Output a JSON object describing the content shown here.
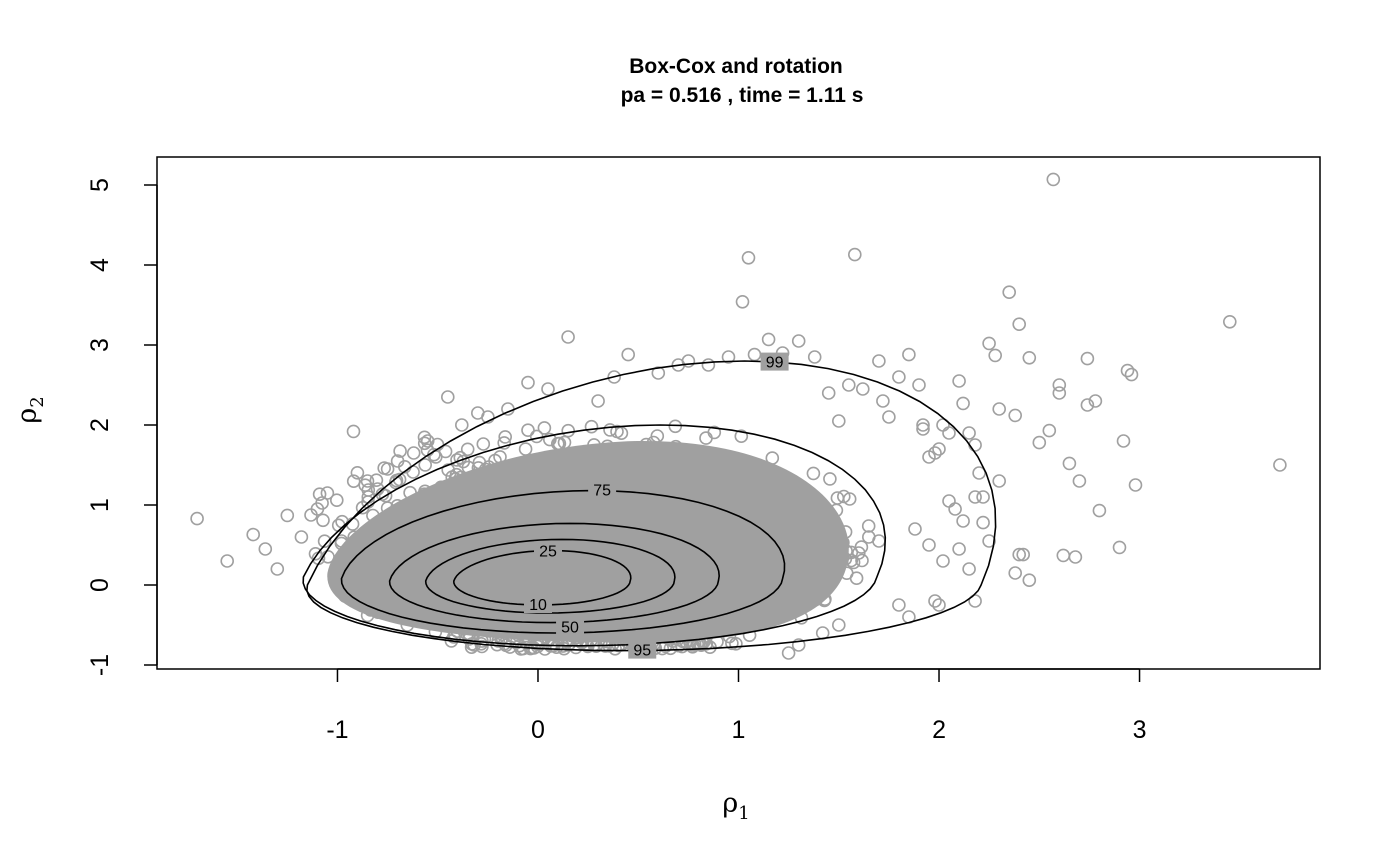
{
  "chart_data": {
    "type": "scatter",
    "title": "Box-Cox and rotation",
    "subtitle": "pa =  0.516 , time =  1.11 s",
    "xlabel": "ρ1",
    "ylabel": "ρ2",
    "xlim": [
      -1.9,
      3.9
    ],
    "ylim": [
      -1.05,
      5.35
    ],
    "x_ticks": [
      -1,
      0,
      1,
      2,
      3
    ],
    "y_ticks": [
      -1,
      0,
      1,
      2,
      3,
      4,
      5
    ],
    "x_tick_labels": [
      "-1",
      "0",
      "1",
      "2",
      "3"
    ],
    "y_tick_labels": [
      "-1",
      "0",
      "1",
      "2",
      "3",
      "4",
      "5"
    ],
    "grid": false,
    "point_color": "#a0a0a0",
    "contour_color": "#000000",
    "dense_region_color": "#a0a0a0",
    "points": {
      "x": [
        -1.7,
        -1.55,
        -1.42,
        -1.36,
        -1.3,
        -1.25,
        -1.18,
        -1.1,
        -1.05,
        -0.98,
        -0.92,
        -0.85,
        -0.8,
        -0.75,
        -0.7,
        -0.62,
        -0.55,
        -0.45,
        -0.38,
        -0.3,
        -0.25,
        -0.15,
        -0.05,
        0.05,
        0.15,
        0.3,
        0.38,
        0.45,
        0.6,
        0.7,
        0.75,
        0.85,
        0.95,
        1.02,
        1.05,
        1.08,
        1.15,
        1.22,
        1.3,
        1.38,
        1.45,
        1.5,
        1.55,
        1.58,
        1.62,
        1.7,
        1.72,
        1.75,
        1.8,
        1.85,
        1.9,
        1.92,
        1.95,
        2.0,
        2.02,
        2.05,
        2.1,
        2.12,
        2.15,
        2.18,
        2.2,
        2.22,
        2.25,
        2.28,
        2.3,
        2.3,
        2.35,
        2.38,
        2.4,
        2.42,
        2.45,
        2.5,
        2.55,
        2.57,
        2.6,
        2.6,
        2.62,
        2.65,
        2.68,
        2.7,
        2.74,
        2.74,
        2.78,
        2.8,
        2.9,
        2.92,
        2.94,
        2.96,
        2.98,
        3.45,
        3.7,
        1.92,
        1.98,
        2.05,
        2.08,
        2.12,
        1.88,
        1.95,
        2.02,
        2.15,
        2.18,
        1.8,
        1.85,
        1.65,
        1.7,
        1.6,
        1.5,
        1.42,
        1.3,
        1.25
      ],
      "y": [
        0.83,
        0.3,
        0.63,
        0.45,
        0.2,
        0.87,
        0.6,
        0.95,
        1.15,
        0.55,
        1.92,
        1.3,
        1.2,
        1.45,
        1.55,
        1.65,
        1.8,
        2.35,
        2.0,
        2.15,
        2.1,
        2.2,
        2.53,
        2.45,
        3.1,
        2.3,
        2.6,
        2.88,
        2.65,
        2.75,
        2.8,
        2.75,
        2.85,
        3.54,
        4.09,
        2.88,
        3.07,
        2.9,
        3.05,
        2.85,
        2.4,
        2.05,
        2.5,
        4.13,
        2.45,
        2.8,
        2.3,
        2.1,
        2.6,
        2.88,
        2.5,
        2.0,
        1.6,
        1.7,
        2.0,
        1.9,
        2.55,
        2.27,
        1.9,
        1.75,
        1.4,
        1.1,
        3.02,
        2.87,
        1.3,
        2.2,
        3.66,
        2.12,
        3.26,
        0.38,
        2.84,
        1.78,
        1.93,
        5.07,
        2.4,
        2.5,
        0.37,
        1.52,
        0.35,
        1.3,
        2.83,
        2.25,
        2.3,
        0.93,
        0.47,
        1.8,
        2.68,
        2.63,
        1.25,
        3.29,
        1.5,
        1.95,
        1.65,
        1.05,
        0.95,
        0.8,
        0.7,
        0.5,
        0.3,
        0.2,
        -0.2,
        -0.25,
        -0.4,
        0.6,
        0.55,
        0.4,
        -0.5,
        -0.6,
        -0.75,
        -0.85
      ],
      "extra_x": [
        2.18,
        2.22,
        2.25,
        2.38,
        2.45,
        2.4,
        2.1,
        2.0,
        1.98
      ],
      "extra_y": [
        1.1,
        0.78,
        0.55,
        0.15,
        0.06,
        0.38,
        0.45,
        -0.25,
        -0.2
      ]
    },
    "contours": [
      {
        "level": "10",
        "label_at": [
          0.0,
          -0.25
        ]
      },
      {
        "level": "25",
        "label_at": [
          0.05,
          0.42
        ]
      },
      {
        "level": "50",
        "label_at": [
          0.16,
          -0.53
        ]
      },
      {
        "level": "75",
        "label_at": [
          0.32,
          1.18
        ]
      },
      {
        "level": "95",
        "label_at": [
          0.52,
          -0.82
        ]
      },
      {
        "level": "99",
        "label_at": [
          1.18,
          2.78
        ]
      }
    ]
  }
}
